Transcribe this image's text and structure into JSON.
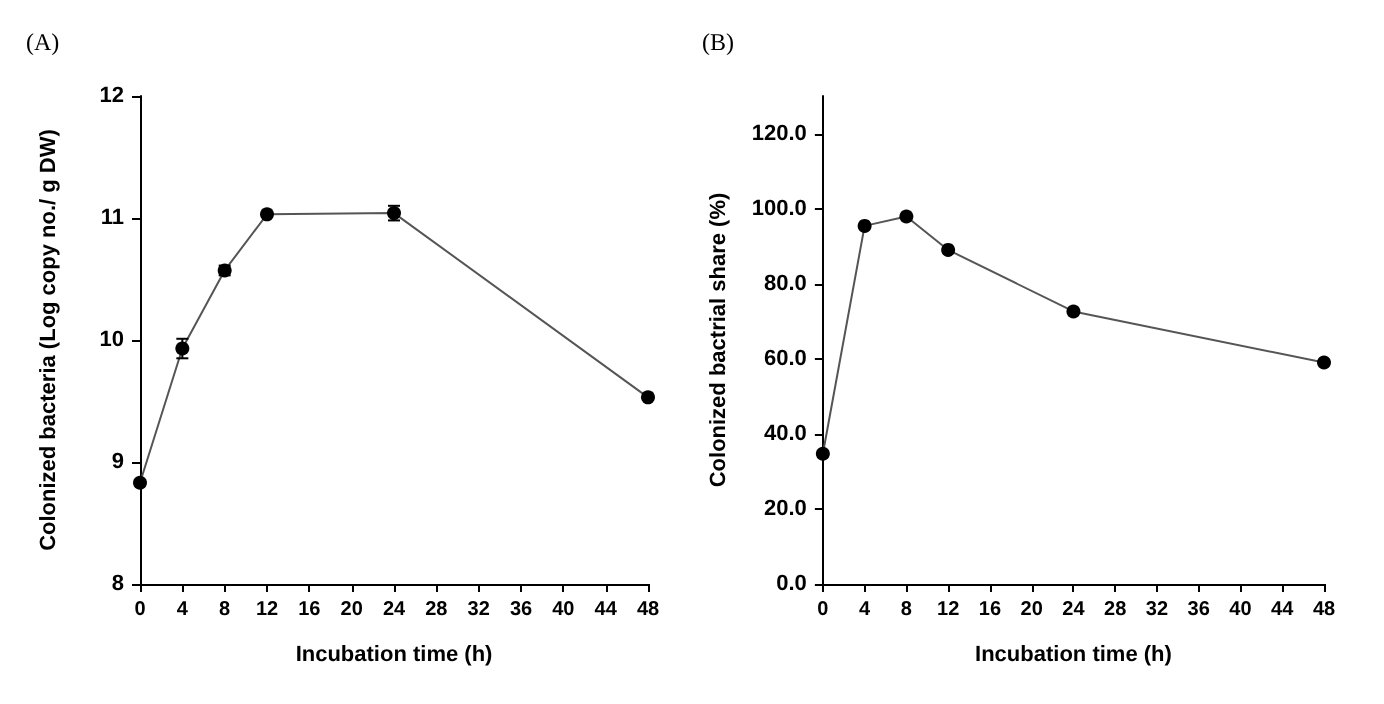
{
  "chart_data": [
    {
      "type": "line",
      "title": "(A)",
      "xlabel": "Incubation time (h)",
      "ylabel": "Colonized bacteria (Log copy no./ g DW)",
      "x": [
        0,
        4,
        8,
        12,
        24,
        48
      ],
      "series": [
        {
          "color": "#000000",
          "values": [
            8.83,
            9.93,
            10.57,
            11.03,
            11.04,
            9.53
          ],
          "errors": [
            null,
            0.08,
            0.04,
            null,
            0.06,
            null
          ]
        }
      ],
      "xlim": [
        0,
        48
      ],
      "xticks": [
        0,
        4,
        8,
        12,
        16,
        20,
        24,
        28,
        32,
        36,
        40,
        44,
        48
      ],
      "ylim": [
        8,
        12
      ],
      "yticks": [
        8,
        9,
        10,
        11,
        12
      ],
      "marker": "circle",
      "line_style": "solid"
    },
    {
      "type": "line",
      "title": "(B)",
      "xlabel": "Incubation time (h)",
      "ylabel": "Colonized bactrial share (%)",
      "x": [
        0,
        4,
        8,
        12,
        24,
        48
      ],
      "series": [
        {
          "color": "#000000",
          "values": [
            34.7,
            95.4,
            97.9,
            89.0,
            72.6,
            59.0
          ]
        }
      ],
      "xlim": [
        0,
        48
      ],
      "xticks": [
        0,
        4,
        8,
        12,
        16,
        20,
        24,
        28,
        32,
        36,
        40,
        44,
        48
      ],
      "ylim": [
        0,
        130
      ],
      "yticks": [
        {
          "value": 0,
          "label": "0.0"
        },
        {
          "value": 20,
          "label": "20.0"
        },
        {
          "value": 40,
          "label": "40.0"
        },
        {
          "value": 60,
          "label": "60.0"
        },
        {
          "value": 80,
          "label": "80.0"
        },
        {
          "value": 100,
          "label": "100.0"
        },
        {
          "value": 120,
          "label": "120.0"
        }
      ],
      "marker": "circle",
      "line_style": "solid"
    }
  ]
}
